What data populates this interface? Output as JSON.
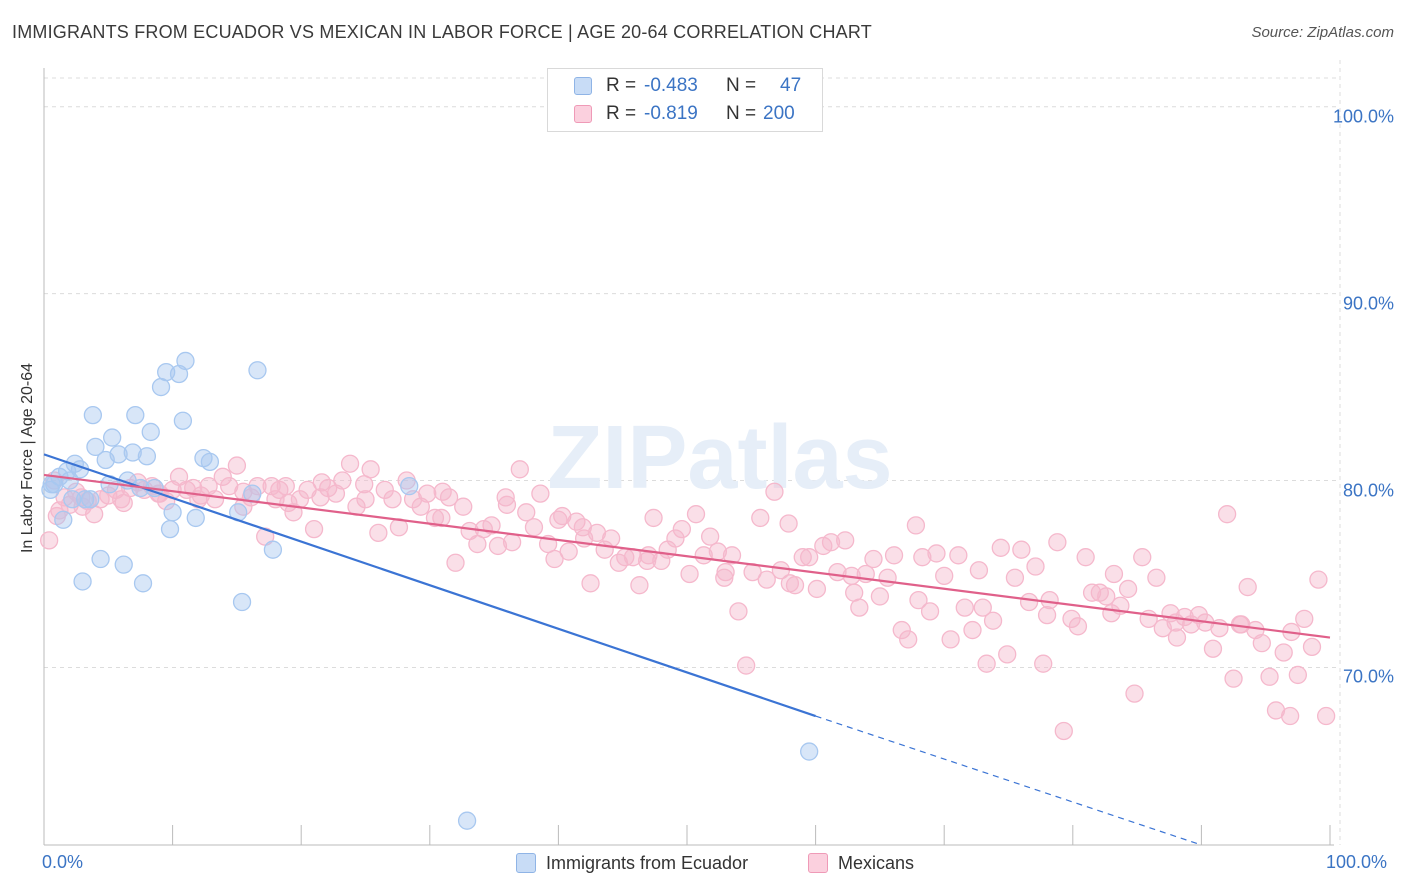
{
  "title": "IMMIGRANTS FROM ECUADOR VS MEXICAN IN LABOR FORCE | AGE 20-64 CORRELATION CHART",
  "source": "Source: ZipAtlas.com",
  "watermark": "ZIPatlas",
  "stats": [
    {
      "r_label": "R =",
      "r_value": "-0.483",
      "n_label": "N =",
      "n_value": "47",
      "color": "#a8c8f0"
    },
    {
      "r_label": "R =",
      "r_value": "-0.819",
      "n_label": "N =",
      "n_value": "200",
      "color": "#f5b8cc"
    }
  ],
  "legend": [
    {
      "label": "Immigrants from Ecuador",
      "color": "#a8c8f0"
    },
    {
      "label": "Mexicans",
      "color": "#f5b8cc"
    }
  ],
  "chart_data": {
    "type": "scatter",
    "title": "IMMIGRANTS FROM ECUADOR VS MEXICAN IN LABOR FORCE | AGE 20-64 CORRELATION CHART",
    "xlabel": "",
    "ylabel": "In Labor Force | Age 20-64",
    "xlim": [
      0,
      100
    ],
    "ylim": [
      60.5,
      102.5
    ],
    "x_tick_labels": [
      "0.0%",
      "100.0%"
    ],
    "y_ticks": [
      70,
      80,
      90,
      100
    ],
    "y_tick_labels": [
      "70.0%",
      "80.0%",
      "90.0%",
      "100.0%"
    ],
    "grid": true,
    "legend_position": "bottom",
    "series": [
      {
        "name": "Immigrants from Ecuador",
        "color": "#3b74d4",
        "fill": "#a8c8f0",
        "trend": {
          "x0": 0,
          "y0": 81.4,
          "x1": 60,
          "y1": 67.4,
          "dashed_to_x": 90,
          "dashed_to_y": 60.5
        },
        "points": [
          [
            0.5,
            79.5
          ],
          [
            0.8,
            79.8
          ],
          [
            1.2,
            80.2
          ],
          [
            1.5,
            77.9
          ],
          [
            1.8,
            80.5
          ],
          [
            2.0,
            80.0
          ],
          [
            2.4,
            80.9
          ],
          [
            2.8,
            80.6
          ],
          [
            3.0,
            74.6
          ],
          [
            3.2,
            79.0
          ],
          [
            3.6,
            79.0
          ],
          [
            3.8,
            83.5
          ],
          [
            4.0,
            81.8
          ],
          [
            4.4,
            75.8
          ],
          [
            4.8,
            81.1
          ],
          [
            5.1,
            79.8
          ],
          [
            5.3,
            82.3
          ],
          [
            5.8,
            81.4
          ],
          [
            6.2,
            75.5
          ],
          [
            6.5,
            80.0
          ],
          [
            6.9,
            81.5
          ],
          [
            7.1,
            83.5
          ],
          [
            7.5,
            79.6
          ],
          [
            7.7,
            74.5
          ],
          [
            8.0,
            81.3
          ],
          [
            8.3,
            82.6
          ],
          [
            8.6,
            79.6
          ],
          [
            9.1,
            85.0
          ],
          [
            9.5,
            85.8
          ],
          [
            9.8,
            77.4
          ],
          [
            10.0,
            78.3
          ],
          [
            10.5,
            85.7
          ],
          [
            10.8,
            83.2
          ],
          [
            11.0,
            86.4
          ],
          [
            11.8,
            78.0
          ],
          [
            12.4,
            81.2
          ],
          [
            12.9,
            81.0
          ],
          [
            15.1,
            78.3
          ],
          [
            15.4,
            73.5
          ],
          [
            16.2,
            79.3
          ],
          [
            16.6,
            85.9
          ],
          [
            17.8,
            76.3
          ],
          [
            28.4,
            79.7
          ],
          [
            32.9,
            61.8
          ],
          [
            59.5,
            65.5
          ],
          [
            0.6,
            79.8
          ],
          [
            2.2,
            79.0
          ]
        ]
      },
      {
        "name": "Mexicans",
        "color": "#e0608a",
        "fill": "#f5b8cc",
        "trend": {
          "x0": 0,
          "y0": 80.3,
          "x1": 100,
          "y1": 71.6
        },
        "points": [
          [
            0.4,
            76.8
          ],
          [
            0.8,
            80.0
          ],
          [
            1.2,
            78.4
          ],
          [
            1.6,
            79.1
          ],
          [
            2.0,
            78.7
          ],
          [
            2.5,
            79.4
          ],
          [
            2.9,
            79.1
          ],
          [
            3.4,
            78.9
          ],
          [
            3.9,
            78.2
          ],
          [
            4.4,
            79.0
          ],
          [
            5.0,
            79.2
          ],
          [
            5.6,
            79.5
          ],
          [
            6.2,
            78.8
          ],
          [
            6.7,
            79.6
          ],
          [
            7.3,
            79.9
          ],
          [
            7.8,
            79.5
          ],
          [
            8.4,
            79.7
          ],
          [
            8.9,
            79.3
          ],
          [
            9.5,
            78.9
          ],
          [
            10.0,
            79.5
          ],
          [
            10.5,
            80.2
          ],
          [
            11.1,
            79.5
          ],
          [
            11.6,
            79.6
          ],
          [
            12.2,
            79.2
          ],
          [
            12.8,
            79.7
          ],
          [
            13.3,
            79.0
          ],
          [
            13.9,
            80.2
          ],
          [
            14.4,
            79.7
          ],
          [
            15.0,
            80.8
          ],
          [
            15.5,
            78.6
          ],
          [
            16.1,
            79.1
          ],
          [
            16.6,
            79.7
          ],
          [
            17.2,
            77.0
          ],
          [
            17.7,
            79.7
          ],
          [
            18.3,
            79.5
          ],
          [
            18.8,
            79.7
          ],
          [
            19.4,
            78.3
          ],
          [
            19.9,
            79.0
          ],
          [
            20.5,
            79.5
          ],
          [
            21.0,
            77.4
          ],
          [
            21.6,
            79.9
          ],
          [
            22.1,
            79.6
          ],
          [
            22.7,
            79.3
          ],
          [
            23.2,
            80.0
          ],
          [
            23.8,
            80.9
          ],
          [
            24.3,
            78.6
          ],
          [
            24.9,
            79.8
          ],
          [
            25.4,
            80.6
          ],
          [
            26.0,
            77.2
          ],
          [
            26.5,
            79.5
          ],
          [
            27.1,
            79.0
          ],
          [
            27.6,
            77.5
          ],
          [
            28.2,
            80.0
          ],
          [
            28.7,
            79.0
          ],
          [
            29.3,
            78.6
          ],
          [
            29.8,
            79.3
          ],
          [
            30.4,
            78.0
          ],
          [
            30.9,
            78.0
          ],
          [
            31.5,
            79.1
          ],
          [
            32.0,
            75.6
          ],
          [
            32.6,
            78.6
          ],
          [
            33.1,
            77.3
          ],
          [
            33.7,
            76.6
          ],
          [
            34.2,
            77.4
          ],
          [
            34.8,
            77.6
          ],
          [
            35.3,
            76.5
          ],
          [
            35.9,
            79.1
          ],
          [
            36.4,
            76.7
          ],
          [
            37.0,
            80.6
          ],
          [
            37.5,
            78.3
          ],
          [
            38.1,
            77.5
          ],
          [
            38.6,
            79.3
          ],
          [
            39.2,
            76.6
          ],
          [
            39.7,
            75.8
          ],
          [
            40.3,
            78.1
          ],
          [
            40.8,
            76.2
          ],
          [
            41.4,
            77.8
          ],
          [
            41.9,
            77.5
          ],
          [
            42.5,
            74.5
          ],
          [
            43.0,
            77.2
          ],
          [
            43.6,
            76.3
          ],
          [
            44.1,
            76.9
          ],
          [
            44.7,
            75.6
          ],
          [
            45.2,
            75.9
          ],
          [
            45.8,
            75.9
          ],
          [
            46.3,
            74.4
          ],
          [
            46.9,
            75.7
          ],
          [
            47.4,
            78.0
          ],
          [
            48.0,
            75.7
          ],
          [
            48.5,
            76.3
          ],
          [
            49.1,
            76.9
          ],
          [
            49.6,
            77.4
          ],
          [
            50.2,
            75.0
          ],
          [
            50.7,
            78.2
          ],
          [
            51.3,
            76.0
          ],
          [
            51.8,
            77.0
          ],
          [
            52.4,
            76.2
          ],
          [
            52.9,
            74.8
          ],
          [
            53.5,
            76.0
          ],
          [
            54.0,
            73.0
          ],
          [
            54.6,
            70.1
          ],
          [
            55.1,
            75.1
          ],
          [
            55.7,
            78.0
          ],
          [
            56.2,
            74.7
          ],
          [
            56.8,
            79.4
          ],
          [
            57.3,
            75.2
          ],
          [
            57.9,
            77.7
          ],
          [
            58.4,
            74.4
          ],
          [
            59.0,
            75.9
          ],
          [
            59.5,
            75.9
          ],
          [
            60.1,
            74.2
          ],
          [
            60.6,
            76.5
          ],
          [
            61.2,
            76.7
          ],
          [
            61.7,
            75.1
          ],
          [
            62.3,
            76.8
          ],
          [
            62.8,
            74.9
          ],
          [
            63.4,
            73.2
          ],
          [
            63.9,
            75.0
          ],
          [
            64.5,
            75.8
          ],
          [
            65.0,
            73.8
          ],
          [
            65.6,
            74.8
          ],
          [
            66.1,
            76.0
          ],
          [
            66.7,
            72.0
          ],
          [
            67.2,
            71.5
          ],
          [
            67.8,
            77.6
          ],
          [
            68.3,
            75.9
          ],
          [
            68.9,
            73.0
          ],
          [
            69.4,
            76.1
          ],
          [
            70.0,
            74.9
          ],
          [
            70.5,
            71.5
          ],
          [
            71.1,
            76.0
          ],
          [
            71.6,
            73.2
          ],
          [
            72.2,
            72.0
          ],
          [
            72.7,
            75.2
          ],
          [
            73.3,
            70.2
          ],
          [
            73.8,
            72.5
          ],
          [
            74.4,
            76.4
          ],
          [
            74.9,
            70.7
          ],
          [
            75.5,
            74.8
          ],
          [
            76.0,
            76.3
          ],
          [
            76.6,
            73.5
          ],
          [
            77.1,
            75.4
          ],
          [
            77.7,
            70.2
          ],
          [
            78.2,
            73.6
          ],
          [
            78.8,
            76.7
          ],
          [
            79.3,
            66.6
          ],
          [
            79.9,
            72.6
          ],
          [
            80.4,
            72.2
          ],
          [
            81.0,
            75.9
          ],
          [
            81.5,
            74.0
          ],
          [
            82.1,
            74.0
          ],
          [
            82.6,
            73.8
          ],
          [
            83.2,
            75.0
          ],
          [
            83.7,
            73.3
          ],
          [
            84.3,
            74.2
          ],
          [
            84.8,
            68.6
          ],
          [
            85.4,
            75.9
          ],
          [
            85.9,
            72.6
          ],
          [
            86.5,
            74.8
          ],
          [
            87.0,
            72.1
          ],
          [
            87.6,
            72.9
          ],
          [
            88.1,
            71.6
          ],
          [
            88.7,
            72.7
          ],
          [
            89.2,
            72.3
          ],
          [
            89.8,
            72.8
          ],
          [
            90.3,
            72.4
          ],
          [
            90.9,
            71.0
          ],
          [
            91.4,
            72.1
          ],
          [
            92.0,
            78.2
          ],
          [
            92.5,
            69.4
          ],
          [
            93.1,
            72.3
          ],
          [
            93.6,
            74.3
          ],
          [
            94.2,
            72.0
          ],
          [
            94.7,
            71.3
          ],
          [
            95.3,
            69.5
          ],
          [
            95.8,
            67.7
          ],
          [
            96.4,
            70.8
          ],
          [
            96.9,
            67.4
          ],
          [
            97.5,
            69.6
          ],
          [
            98.0,
            72.6
          ],
          [
            98.6,
            71.1
          ],
          [
            99.1,
            74.7
          ],
          [
            99.7,
            67.4
          ],
          [
            1.0,
            78.1
          ],
          [
            3.0,
            78.6
          ],
          [
            6.0,
            79.0
          ],
          [
            9.0,
            79.3
          ],
          [
            12.0,
            79.0
          ],
          [
            15.5,
            79.4
          ],
          [
            18.0,
            79.0
          ],
          [
            21.5,
            79.1
          ],
          [
            25.0,
            79.0
          ],
          [
            31.0,
            79.4
          ],
          [
            36.0,
            78.7
          ],
          [
            42.0,
            76.9
          ],
          [
            47.0,
            76.0
          ],
          [
            53.0,
            75.1
          ],
          [
            58.0,
            74.5
          ],
          [
            63.0,
            74.0
          ],
          [
            68.0,
            73.6
          ],
          [
            73.0,
            73.2
          ],
          [
            78.0,
            72.8
          ],
          [
            83.0,
            72.9
          ],
          [
            88.0,
            72.4
          ],
          [
            93.0,
            72.3
          ],
          [
            97.0,
            71.9
          ],
          [
            19.0,
            78.8
          ],
          [
            40.0,
            77.9
          ]
        ]
      }
    ]
  }
}
